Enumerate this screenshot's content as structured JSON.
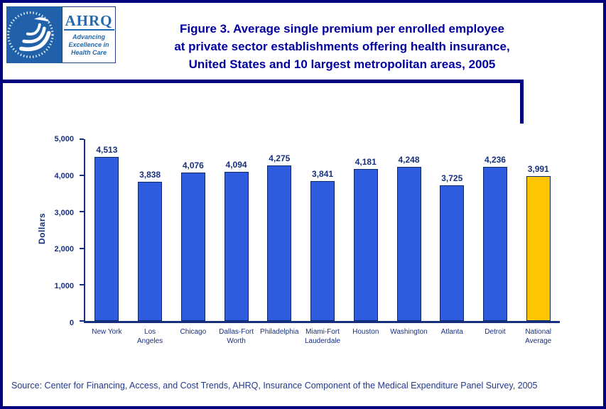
{
  "header": {
    "title_lines": [
      "Figure 3. Average single premium per enrolled employee",
      "at private sector establishments offering health insurance,",
      "United States and 10 largest metropolitan areas, 2005"
    ],
    "logos": {
      "ahrq_acronym": "AHRQ",
      "ahrq_tagline_lines": [
        "Advancing",
        "Excellence in",
        "Health Care"
      ]
    }
  },
  "chart_data": {
    "type": "bar",
    "title": "Figure 3. Average single premium per enrolled employee at private sector establishments offering health insurance, United States and 10 largest metropolitan areas, 2005",
    "categories": [
      "New York",
      "Los Angeles",
      "Chicago",
      "Dallas-Fort Worth",
      "Philadelphia",
      "Miami-Fort Lauderdale",
      "Houston",
      "Washington",
      "Atlanta",
      "Detroit",
      "National Average"
    ],
    "category_lines": [
      [
        "New York"
      ],
      [
        "Los",
        "Angeles"
      ],
      [
        "Chicago"
      ],
      [
        "Dallas-Fort",
        "Worth"
      ],
      [
        "Philadelphia"
      ],
      [
        "Miami-Fort",
        "Lauderdale"
      ],
      [
        "Houston"
      ],
      [
        "Washington"
      ],
      [
        "Atlanta"
      ],
      [
        "Detroit"
      ],
      [
        "National",
        "Average"
      ]
    ],
    "values": [
      4513,
      3838,
      4076,
      4094,
      4275,
      3841,
      4181,
      4248,
      3725,
      4236,
      3991
    ],
    "value_labels": [
      "4,513",
      "3,838",
      "4,076",
      "4,094",
      "4,275",
      "3,841",
      "4,181",
      "4,248",
      "3,725",
      "4,236",
      "3,991"
    ],
    "xlabel": "",
    "ylabel": "Dollars",
    "ylim": [
      0,
      5000
    ],
    "yticks": [
      0,
      1000,
      2000,
      3000,
      4000,
      5000
    ],
    "ytick_labels": [
      "0",
      "1,000",
      "2,000",
      "3,000",
      "4,000",
      "5,000"
    ],
    "bar_colors": {
      "default": "#2f5bde",
      "highlight": "#ffc503"
    },
    "highlight_index": 10,
    "grid": false,
    "legend": false
  },
  "footer": {
    "source": "Source: Center for Financing, Access, and Cost Trends, AHRQ, Insurance Component of the Medical Expenditure Panel Survey, 2005"
  }
}
